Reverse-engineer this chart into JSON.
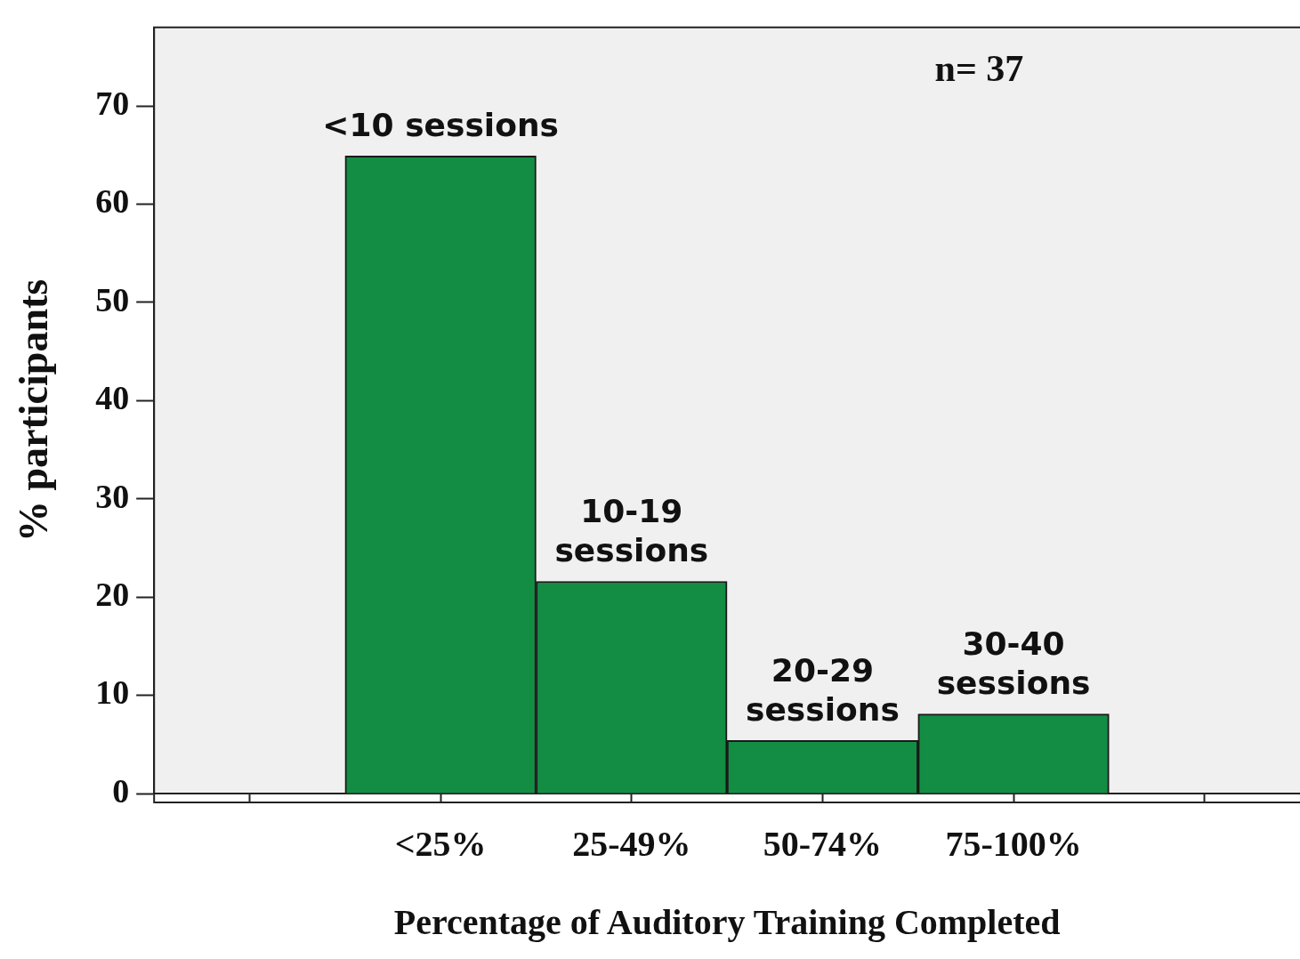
{
  "chart_data": {
    "type": "bar",
    "xlabel": "Percentage of Auditory Training Completed",
    "ylabel": "% participants",
    "categories": [
      null,
      "<25%",
      "25-49%",
      "50-74%",
      "75-100%",
      null
    ],
    "values": [
      null,
      64.9,
      21.6,
      5.4,
      8.1,
      null
    ],
    "color": "#138d43",
    "ylim": [
      0,
      78
    ],
    "yticks": [
      0,
      10,
      20,
      30,
      40,
      50,
      60,
      70
    ],
    "grid": false,
    "legend": false,
    "annotations": [
      {
        "text": "<10 sessions",
        "x": "<25%",
        "y": 64.9
      },
      {
        "text": "10-19\nsessions",
        "x": "25-49%",
        "y": 21.6
      },
      {
        "text": "20-29\nsessions",
        "x": "50-74%",
        "y": 5.4
      },
      {
        "text": "30-40\nsessions",
        "x": "75-100%",
        "y": 8.1
      },
      "n= 37"
    ]
  }
}
